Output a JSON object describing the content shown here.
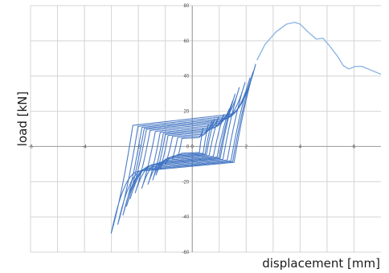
{
  "chart_data": {
    "type": "line",
    "title": "",
    "xlabel": "displacement [mm]",
    "ylabel": "load [kN]",
    "xlim": [
      -6,
      7
    ],
    "ylim": [
      -60,
      80
    ],
    "grid": true,
    "x_ticks": [
      -6,
      -4,
      -2,
      0,
      2,
      4,
      6
    ],
    "x_tick_labels": [
      "-6",
      "-4",
      "-2",
      "0",
      "2",
      "4",
      "6"
    ],
    "y_ticks": [
      -60,
      -40,
      -20,
      0,
      20,
      40,
      60,
      80
    ],
    "y_tick_labels": [
      "-60",
      "-40",
      "-20",
      "0",
      "20",
      "40",
      "60",
      "80"
    ],
    "series_colors": {
      "cyclic": "#3a6fc0",
      "monotonic": "#8fb6e6"
    },
    "series": [
      {
        "kind": "monotonic",
        "points": [
          [
            2.4,
            49
          ],
          [
            2.7,
            58
          ],
          [
            3.1,
            65
          ],
          [
            3.5,
            69.5
          ],
          [
            3.8,
            70.5
          ],
          [
            4.0,
            69.5
          ],
          [
            4.3,
            65
          ],
          [
            4.6,
            61
          ],
          [
            4.85,
            61.5
          ],
          [
            5.1,
            57
          ],
          [
            5.4,
            51
          ],
          [
            5.6,
            46
          ],
          [
            5.8,
            44
          ],
          [
            6.05,
            45.5
          ],
          [
            6.3,
            45.5
          ],
          [
            6.6,
            43.5
          ],
          [
            7.0,
            41
          ]
        ]
      }
    ],
    "cyclic_envelope": {
      "peak_positive": [
        2.4,
        48
      ],
      "peak_negative": [
        -3.0,
        -48
      ],
      "cycles": 14
    }
  }
}
